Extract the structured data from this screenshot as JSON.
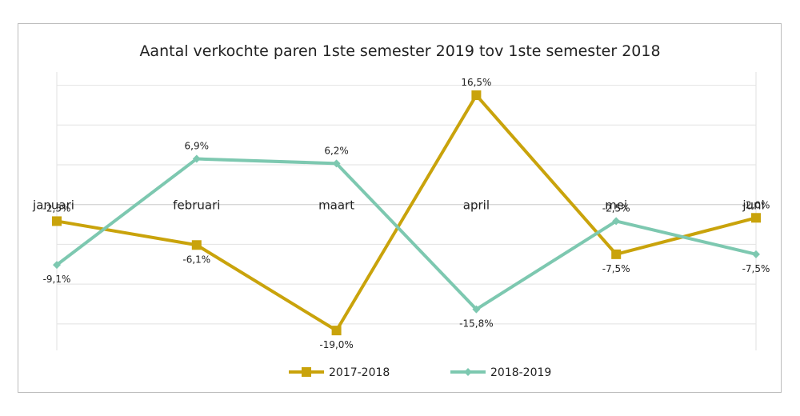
{
  "chart_data": {
    "type": "line",
    "title": "Aantal verkochte paren 1ste semester 2019 tov 1ste semester 2018",
    "categories": [
      "januari",
      "februari",
      "maart",
      "april",
      "mei",
      "juni"
    ],
    "ylim": [
      -22,
      20
    ],
    "grid": true,
    "legend_position": "bottom",
    "series": [
      {
        "name": "2017-2018",
        "color": "#C9A30B",
        "marker": "square",
        "values": [
          -2.5,
          -6.1,
          -19.0,
          16.5,
          -7.5,
          -2.0
        ],
        "labels": [
          "-2,5%",
          "-6,1%",
          "-19,0%",
          "16,5%",
          "-7,5%",
          "-2,0%"
        ]
      },
      {
        "name": "2018-2019",
        "color": "#7DC8B0",
        "marker": "diamond",
        "values": [
          -9.1,
          6.9,
          6.2,
          -15.8,
          -2.5,
          -7.5
        ],
        "labels": [
          "-9,1%",
          "6,9%",
          "6,2%",
          "-15,8%",
          "-2,5%",
          "-7,5%"
        ]
      }
    ]
  }
}
